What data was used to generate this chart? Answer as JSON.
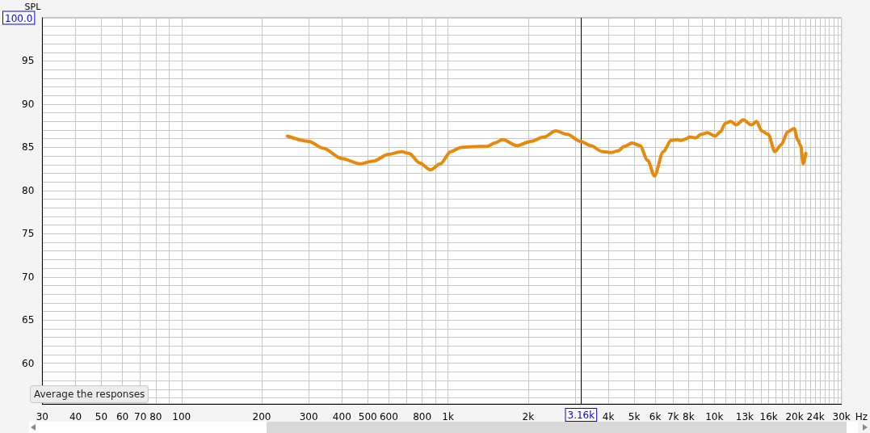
{
  "chart_data": {
    "type": "line",
    "ylabel": "SPL",
    "log": "x",
    "grid": true,
    "marker": "none",
    "line_style": "solid",
    "xlim": [
      30,
      30000
    ],
    "xticks": [
      30,
      40,
      50,
      60,
      70,
      80,
      {
        "value": 90,
        "label": null
      },
      100,
      200,
      300,
      400,
      500,
      600,
      {
        "value": 700,
        "label": null
      },
      800,
      {
        "value": 900,
        "label": null
      },
      {
        "value": 1000,
        "label": "1k"
      },
      {
        "value": 2000,
        "label": "2k"
      },
      {
        "value": 3000,
        "label": null
      },
      {
        "value": 4000,
        "label": "4k"
      },
      {
        "value": 5000,
        "label": "5k"
      },
      {
        "value": 6000,
        "label": "6k"
      },
      {
        "value": 7000,
        "label": "7k"
      },
      {
        "value": 8000,
        "label": "8k"
      },
      {
        "value": 9000,
        "label": null
      },
      {
        "value": 10000,
        "label": "10k"
      },
      {
        "value": 11000,
        "label": null
      },
      {
        "value": 12000,
        "label": null
      },
      {
        "value": 13000,
        "label": "13k"
      },
      {
        "value": 14000,
        "label": null
      },
      {
        "value": 15000,
        "label": null
      },
      {
        "value": 16000,
        "label": "16k"
      },
      {
        "value": 17000,
        "label": null
      },
      {
        "value": 18000,
        "label": null
      },
      {
        "value": 19000,
        "label": null
      },
      {
        "value": 20000,
        "label": "20k"
      },
      {
        "value": 21000,
        "label": null
      },
      {
        "value": 22000,
        "label": null
      },
      {
        "value": 23000,
        "label": null
      },
      {
        "value": 24000,
        "label": "24k"
      },
      {
        "value": 25000,
        "label": null
      },
      {
        "value": 26000,
        "label": null
      },
      {
        "value": 27000,
        "label": null
      },
      {
        "value": 28000,
        "label": null
      },
      {
        "value": 29000,
        "label": null
      },
      {
        "value": 30000,
        "label": "30k"
      }
    ],
    "xlabel": "Hz",
    "ylim": [
      55.3,
      100
    ],
    "yticks": [
      {
        "value": 56,
        "label": null
      },
      {
        "value": 57,
        "label": null
      },
      {
        "value": 58,
        "label": null
      },
      {
        "value": 59,
        "label": null
      },
      60,
      {
        "value": 61,
        "label": null
      },
      {
        "value": 62,
        "label": null
      },
      {
        "value": 63,
        "label": null
      },
      {
        "value": 64,
        "label": null
      },
      65,
      {
        "value": 66,
        "label": null
      },
      {
        "value": 67,
        "label": null
      },
      {
        "value": 68,
        "label": null
      },
      {
        "value": 69,
        "label": null
      },
      70,
      {
        "value": 71,
        "label": null
      },
      {
        "value": 72,
        "label": null
      },
      {
        "value": 73,
        "label": null
      },
      {
        "value": 74,
        "label": null
      },
      75,
      {
        "value": 76,
        "label": null
      },
      {
        "value": 77,
        "label": null
      },
      {
        "value": 78,
        "label": null
      },
      {
        "value": 79,
        "label": null
      },
      80,
      {
        "value": 81,
        "label": null
      },
      {
        "value": 82,
        "label": null
      },
      {
        "value": 83,
        "label": null
      },
      {
        "value": 84,
        "label": null
      },
      85,
      {
        "value": 86,
        "label": null
      },
      {
        "value": 87,
        "label": null
      },
      {
        "value": 88,
        "label": null
      },
      {
        "value": 89,
        "label": null
      },
      90,
      {
        "value": 91,
        "label": null
      },
      {
        "value": 92,
        "label": null
      },
      {
        "value": 93,
        "label": null
      },
      {
        "value": 94,
        "label": null
      },
      95,
      {
        "value": 96,
        "label": null
      },
      {
        "value": 97,
        "label": null
      },
      {
        "value": 98,
        "label": null
      },
      {
        "value": 99,
        "label": null
      },
      {
        "value": 100,
        "label": "100.0"
      }
    ],
    "ref_lines": [
      {
        "axis": "x",
        "value": 3160,
        "label": "3.16k",
        "color": "#000000"
      }
    ],
    "annotations": [
      "Average the responses"
    ],
    "series": [
      {
        "color": "#e8890c",
        "x": [
          250,
          300,
          340,
          400,
          467,
          523,
          598,
          669,
          715,
          783,
          860,
          936,
          1024,
          1120,
          1310,
          1402,
          1499,
          1603,
          1813,
          2050,
          2294,
          2538,
          2807,
          3140,
          3434,
          3798,
          4108,
          4345,
          4594,
          4914,
          5255,
          5621,
          5961,
          6430,
          6877,
          7276,
          7439,
          7865,
          8050,
          8511,
          8904,
          9412,
          10070,
          10530,
          11010,
          11520,
          12100,
          12830,
          13780,
          14400,
          15070,
          15930,
          16860,
          17820,
          18850,
          19940,
          20530,
          21090,
          21570,
          22060
        ],
        "values": [
          86.3,
          85.7,
          84.9,
          83.7,
          83.1,
          83.4,
          84.2,
          84.5,
          84.3,
          83.2,
          82.4,
          83.1,
          84.5,
          85.0,
          85.1,
          85.1,
          85.5,
          85.9,
          85.2,
          85.7,
          86.2,
          86.9,
          86.5,
          85.7,
          85.2,
          84.5,
          84.4,
          84.6,
          85.1,
          85.5,
          85.2,
          83.5,
          81.7,
          84.5,
          85.8,
          85.9,
          85.8,
          86.0,
          86.2,
          86.1,
          86.5,
          86.7,
          86.3,
          86.8,
          87.8,
          88.0,
          87.6,
          88.2,
          87.6,
          88.0,
          86.9,
          86.5,
          84.5,
          85.3,
          86.8,
          87.2,
          85.9,
          85.2,
          83.1,
          84.3
        ]
      }
    ]
  }
}
